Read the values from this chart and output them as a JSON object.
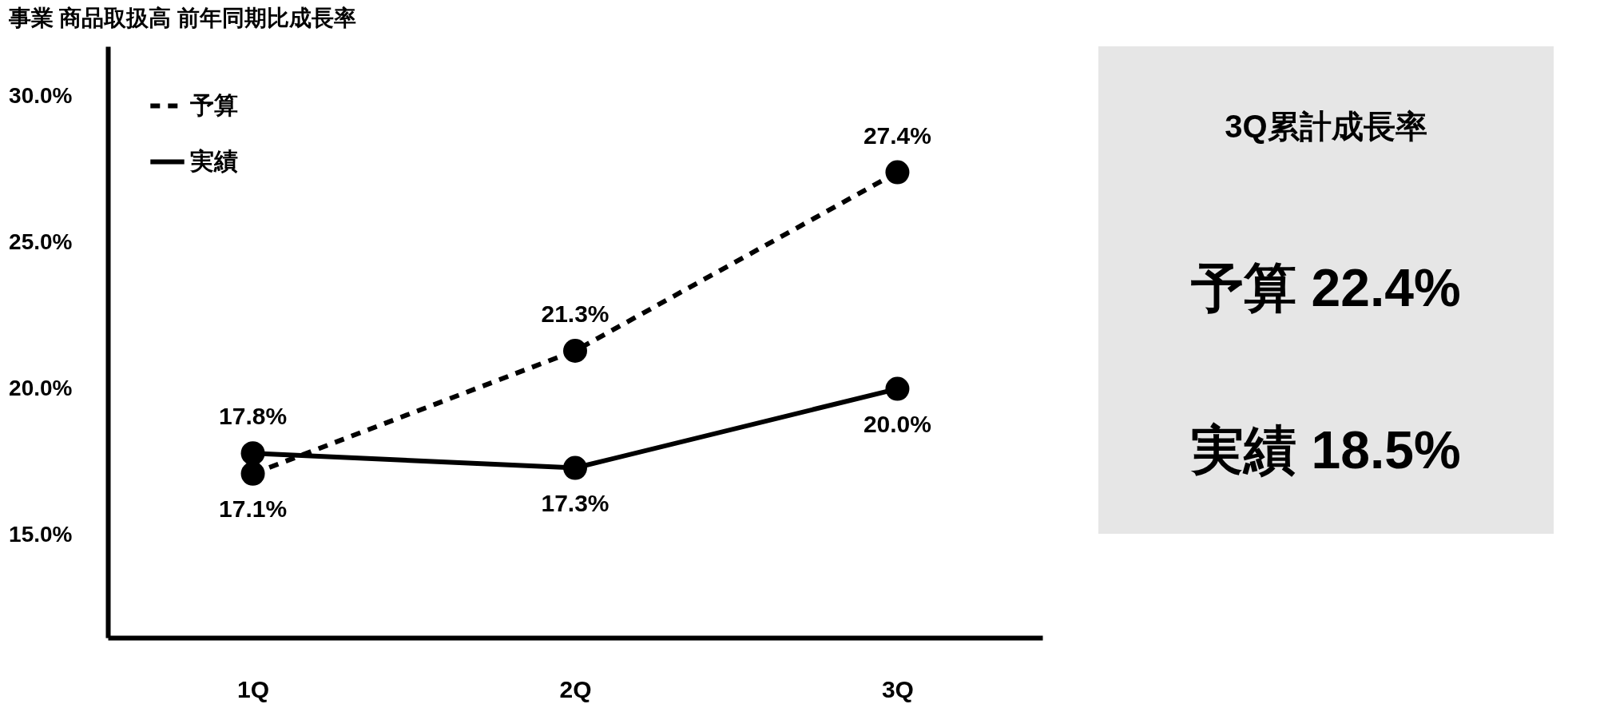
{
  "chart_data": [
    {
      "type": "line",
      "title": "事業 商品取扱高 前年同期比成長率",
      "categories": [
        "1Q",
        "2Q",
        "3Q"
      ],
      "series": [
        {
          "name": "予算",
          "color": "#000000",
          "line_style": "dashed",
          "values": [
            17.1,
            21.3,
            27.4
          ],
          "value_labels": [
            "17.1%",
            "21.3%",
            "27.4%"
          ]
        },
        {
          "name": "実績",
          "color": "#000000",
          "line_style": "solid",
          "values": [
            17.8,
            17.3,
            20.0
          ],
          "value_labels": [
            "17.8%",
            "17.3%",
            "20.0%"
          ]
        }
      ],
      "ylim": [
        11.5,
        31.7
      ],
      "yticks": [
        {
          "value": 15,
          "label": "15.0%"
        },
        {
          "value": 20,
          "label": "20.0%"
        },
        {
          "value": 25,
          "label": "25.0%"
        },
        {
          "value": 30,
          "label": "30.0%"
        }
      ],
      "grid": false,
      "legend": "top left",
      "marker": "circle"
    },
    {
      "type": "other",
      "title": "3Q累計成長率",
      "annotations": [
        "予算 22.4%",
        "実績 18.5%"
      ]
    }
  ]
}
